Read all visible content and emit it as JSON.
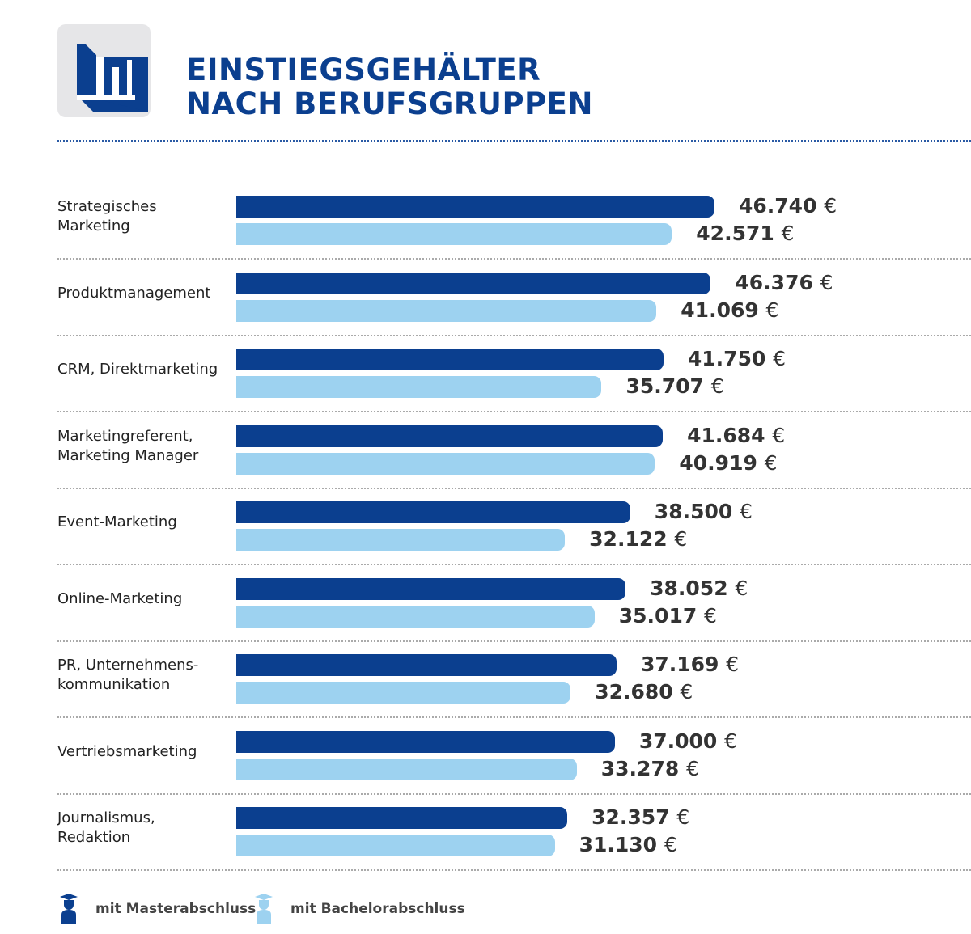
{
  "chart_data": {
    "type": "bar",
    "orientation": "horizontal",
    "title": "EINSTIEGSGEHÄLTER\nNACH BERUFSGRUPPEN",
    "currency": "€",
    "categories": [
      "Strategisches\nMarketing",
      "Produktmanagement",
      "CRM, Direktmarketing",
      "Marketingreferent,\nMarketing Manager",
      "Event-Marketing",
      "Online-Marketing",
      "PR, Unternehmens-\nkommunikation",
      "Vertriebsmarketing",
      "Journalismus,\nRedaktion"
    ],
    "series": [
      {
        "name": "mit Masterabschluss",
        "color": "#0b3f8f",
        "values": [
          46740,
          46376,
          41750,
          41684,
          38500,
          38052,
          37169,
          37000,
          32357
        ],
        "labels": [
          "46.740",
          "46.376",
          "41.750",
          "41.684",
          "38.500",
          "38.052",
          "37.169",
          "37.000",
          "32.357"
        ]
      },
      {
        "name": "mit Bachelorabschluss",
        "color": "#9dd2f0",
        "values": [
          42571,
          41069,
          35707,
          40919,
          32122,
          35017,
          32680,
          33278,
          31130
        ],
        "labels": [
          "42.571",
          "41.069",
          "35.707",
          "40.919",
          "32.122",
          "35.017",
          "32.680",
          "33.278",
          "31.130"
        ]
      }
    ],
    "xlim": [
      0,
      50000
    ],
    "grid": false,
    "legend": "bottom-left"
  }
}
